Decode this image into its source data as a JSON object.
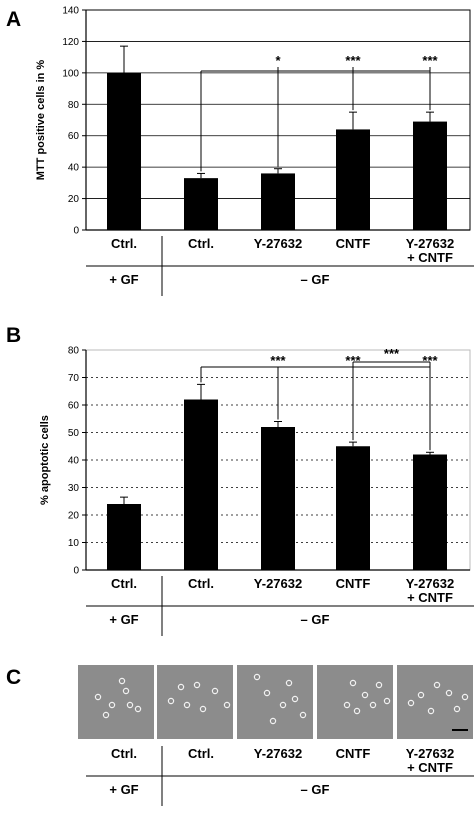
{
  "panel_letters": [
    "A",
    "B",
    "C"
  ],
  "chart_data": [
    {
      "type": "bar",
      "panel": "A",
      "ylabel": "MTT positive cells in %",
      "ylim": [
        0,
        140
      ],
      "yticks": [
        0,
        20,
        40,
        60,
        80,
        100,
        120,
        140
      ],
      "grid": "solid",
      "categories": [
        "Ctrl.",
        "Ctrl.",
        "Y-27632",
        "CNTF",
        "Y-27632\n+ CNTF"
      ],
      "values": [
        100,
        33,
        36,
        64,
        69
      ],
      "errors": [
        17,
        3,
        3,
        11,
        6
      ],
      "groups": [
        "+ GF",
        "– GF"
      ],
      "significance": [
        {
          "from": 1,
          "to": 2,
          "label": "*"
        },
        {
          "from": 1,
          "to": 3,
          "label": "***"
        },
        {
          "from": 1,
          "to": 4,
          "label": "***"
        }
      ]
    },
    {
      "type": "bar",
      "panel": "B",
      "ylabel": "% apoptotic cells",
      "ylim": [
        0,
        80
      ],
      "yticks": [
        0,
        10,
        20,
        30,
        40,
        50,
        60,
        70,
        80
      ],
      "grid": "dotted",
      "categories": [
        "Ctrl.",
        "Ctrl.",
        "Y-27632",
        "CNTF",
        "Y-27632\n+ CNTF"
      ],
      "values": [
        24,
        62,
        52,
        45,
        42
      ],
      "errors": [
        2.5,
        5.5,
        2,
        1.5,
        0.8
      ],
      "groups": [
        "+ GF",
        "– GF"
      ],
      "significance": [
        {
          "from": 1,
          "to": 2,
          "label": "***"
        },
        {
          "from": 1,
          "to": 3,
          "label": "***"
        },
        {
          "from": 1,
          "to": 4,
          "label": "***"
        },
        {
          "from": 3,
          "to": 4,
          "label": "***"
        }
      ]
    }
  ],
  "panel_c": {
    "categories": [
      "Ctrl.",
      "Ctrl.",
      "Y-27632",
      "CNTF",
      "Y-27632\n+ CNTF"
    ],
    "groups": [
      "+ GF",
      "– GF"
    ],
    "photos": [
      "micrograph",
      "micrograph",
      "micrograph",
      "micrograph",
      "micrograph"
    ],
    "scale_bar": true
  }
}
